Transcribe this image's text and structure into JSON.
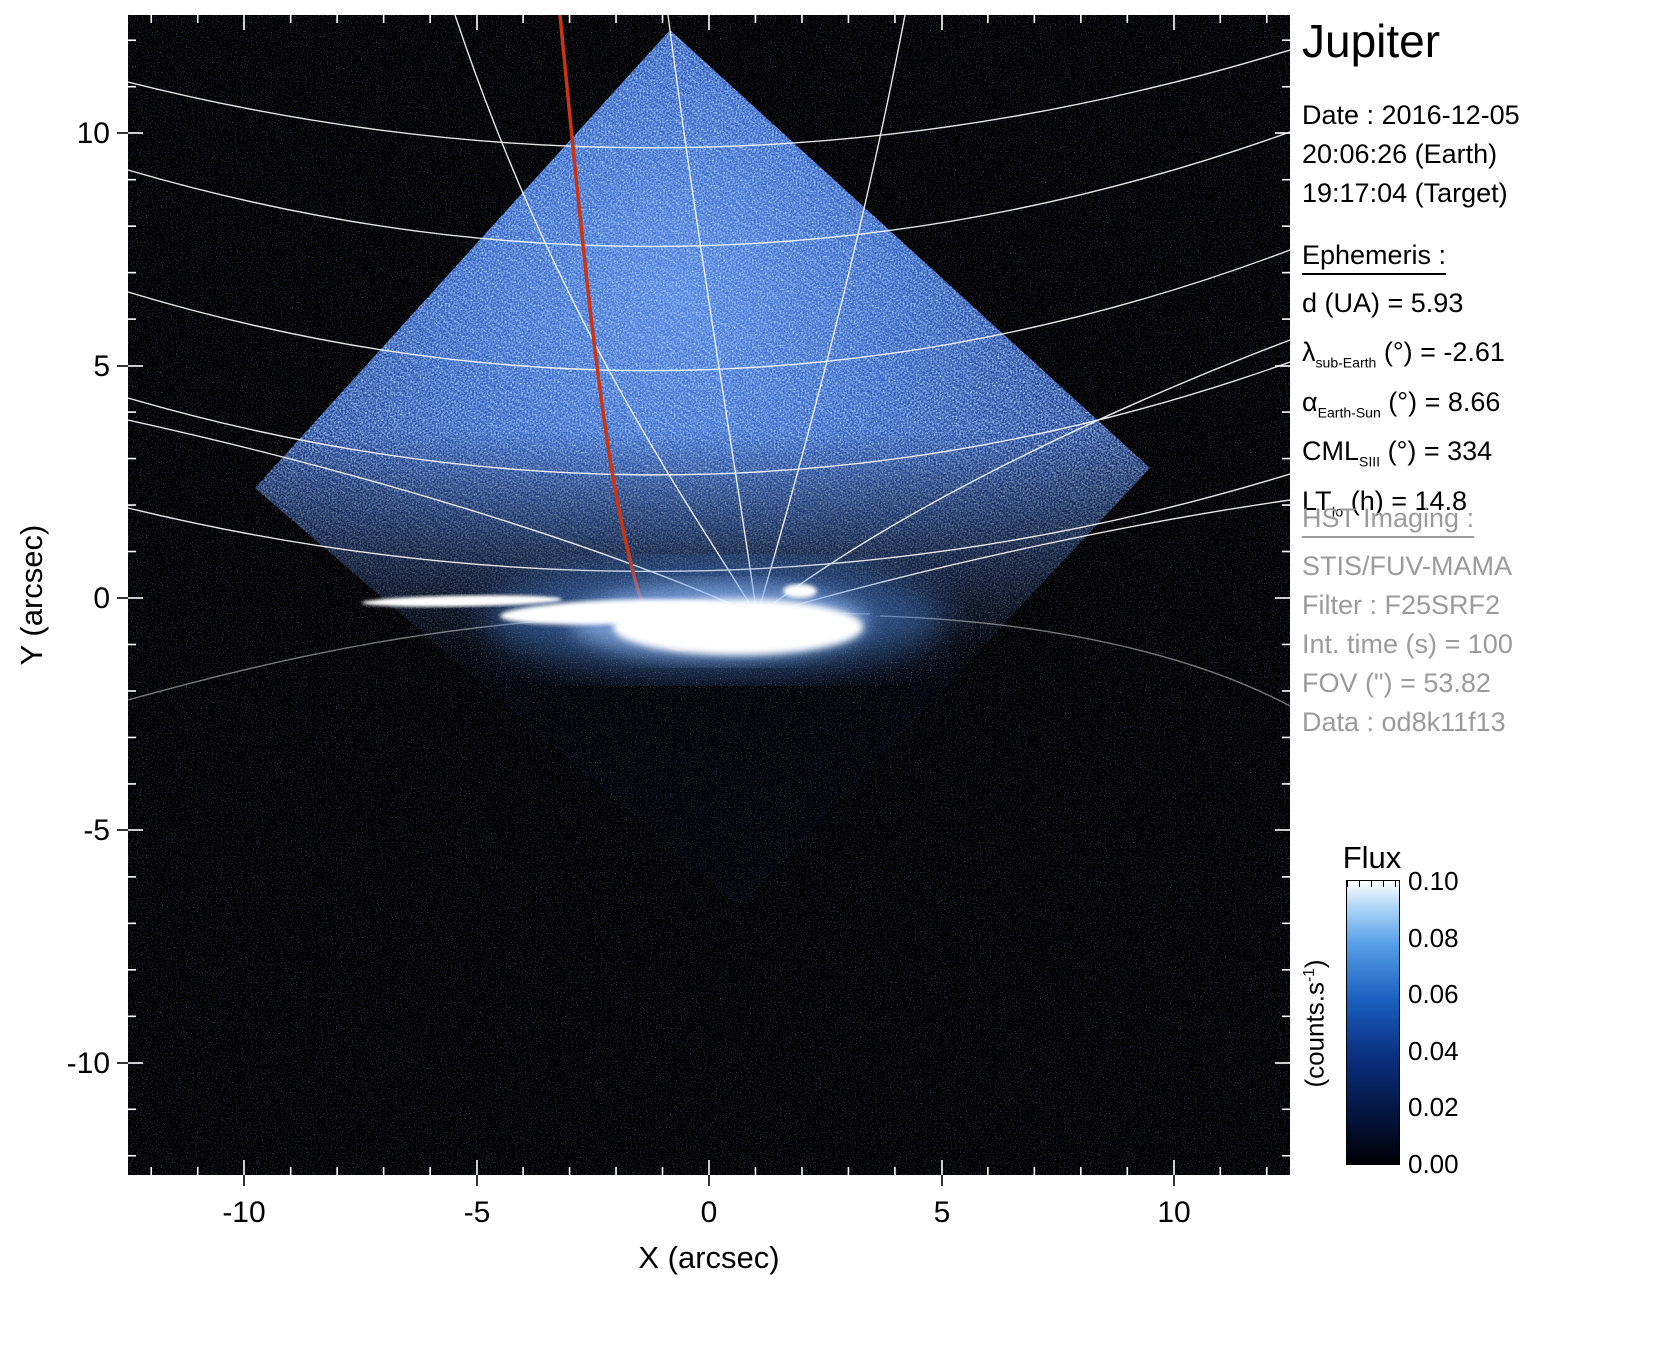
{
  "title": "Jupiter",
  "panel": {
    "date_label": "Date : 2016-12-05",
    "time_earth": "20:06:26 (Earth)",
    "time_target": "19:17:04 (Target)",
    "ephemeris_heading": "Ephemeris :",
    "ephemeris": [
      {
        "pre": "d (UA)",
        "sub": "",
        "post": "  = 5.93"
      },
      {
        "pre": "λ",
        "sub": "sub-Earth",
        "post": " (°) = -2.61"
      },
      {
        "pre": "α",
        "sub": "Earth-Sun",
        "post": " (°) = 8.66"
      },
      {
        "pre": "CML",
        "sub": "SIII",
        "post": " (°) = 334"
      },
      {
        "pre": "LT",
        "sub": "Io",
        "post": " (h) = 14.8"
      }
    ],
    "hst_heading": "HST Imaging :",
    "hst": [
      "STIS/FUV-MAMA",
      "Filter : F25SRF2",
      "Int. time (s) = 100",
      "FOV (\") = 53.82",
      "Data : od8k11f13"
    ]
  },
  "axes": {
    "xlabel": "X (arcsec)",
    "ylabel": "Y (arcsec)",
    "x_ticks": [
      "-10",
      "-5",
      "0",
      "5",
      "10"
    ],
    "y_ticks": [
      "10",
      "5",
      "0",
      "-5",
      "-10"
    ]
  },
  "colorbar": {
    "title": "Flux",
    "labels": [
      "0.10",
      "0.08",
      "0.06",
      "0.04",
      "0.02",
      "0.00"
    ],
    "unit_pre": "(counts.s",
    "unit_sup": "-1",
    "unit_post": ")"
  },
  "chart_data": {
    "type": "heatmap",
    "title": "Jupiter",
    "xlabel": "X (arcsec)",
    "ylabel": "Y (arcsec)",
    "xlim": [
      -12.5,
      12.5
    ],
    "ylim": [
      -12.5,
      12.5
    ],
    "x_ticks": [
      -10,
      -5,
      0,
      5,
      10
    ],
    "y_ticks": [
      -10,
      -5,
      0,
      5,
      10
    ],
    "grid": "planetocentric graticule (white latitude/longitude curves)",
    "background_color": "#000000",
    "colorbar": {
      "label": "Flux (counts.s-1)",
      "range": [
        0.0,
        0.1
      ],
      "ticks": [
        0.0,
        0.02,
        0.04,
        0.06,
        0.08,
        0.1
      ],
      "colormap": "black -> dark blue -> blue -> light blue -> white"
    },
    "features": [
      {
        "name": "stis-aperture",
        "shape": "diamond",
        "vertices_arcsec": [
          [
            -0.85,
            12.2
          ],
          [
            9.5,
            2.8
          ],
          [
            0.65,
            -6.6
          ],
          [
            -9.75,
            2.35
          ]
        ],
        "description": "rotated-square detector field of view filled with blue photon noise, brighter toward upper center"
      },
      {
        "name": "auroral-emission",
        "shape": "elongated bright region",
        "extent_x_arcsec": [
          -7.2,
          3.7
        ],
        "center_y_arcsec": -0.6,
        "description": "saturated white auroral arc along the planetary limb with blue glow halo"
      },
      {
        "name": "io-footprint-track",
        "shape": "curve",
        "color": "#cc3311",
        "from_arcsec": [
          -3.2,
          12.5
        ],
        "to_arcsec": [
          -0.4,
          -1.1
        ],
        "description": "red curve running from top of frame down to the bright limb region"
      }
    ],
    "ephemeris": {
      "d_UA": 5.93,
      "lambda_subEarth_deg": -2.61,
      "alpha_EarthSun_deg": 8.66,
      "CML_SIII_deg": 334,
      "LT_Io_h": 14.8
    },
    "observation": {
      "date": "2016-12-05",
      "time_earth": "20:06:26",
      "time_target": "19:17:04",
      "instrument": "STIS/FUV-MAMA",
      "filter": "F25SRF2",
      "int_time_s": 100,
      "fov_arcsec": 53.82,
      "data_id": "od8k11f13"
    }
  }
}
